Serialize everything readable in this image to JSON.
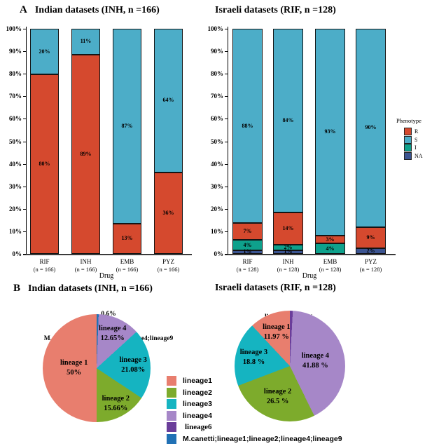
{
  "panel_a": {
    "letter": "A",
    "left_title": "Indian datasets  (INH, n =166)",
    "right_title": "Israeli datasets (RIF, n =128)"
  },
  "panel_b": {
    "letter": "B",
    "left_title": "Indian datasets  (INH, n =166)",
    "right_title": "Israeli datasets (RIF, n =128)"
  },
  "axis": {
    "ticks": [
      "0%",
      "10%",
      "20%",
      "30%",
      "40%",
      "50%",
      "60%",
      "70%",
      "80%",
      "90%",
      "100%"
    ],
    "xlabel": "Drug"
  },
  "phenotype_legend": {
    "title": "Phenotype",
    "items": [
      {
        "label": "R",
        "color": "#d5492e"
      },
      {
        "label": "S",
        "color": "#4cadc8"
      },
      {
        "label": "I",
        "color": "#0ea18c"
      },
      {
        "label": "NA",
        "color": "#3b5491"
      }
    ]
  },
  "lineage_legend": {
    "items": [
      {
        "label": "lineage1",
        "color": "#e87e6e",
        "serif": false
      },
      {
        "label": "lineage2",
        "color": "#7dab2c",
        "serif": false
      },
      {
        "label": "lineage3",
        "color": "#15b4c1",
        "serif": false
      },
      {
        "label": "lineage4",
        "color": "#a687c8",
        "serif": false
      },
      {
        "label": "lineage6",
        "color": "#6a3d9a",
        "serif": true
      },
      {
        "label": "M.canetti;lineage1;lineage2;lineage4;lineage9",
        "color": "#2171b5",
        "serif": false
      }
    ]
  },
  "chart_data": [
    {
      "type": "bar",
      "title": "Indian datasets (INH, n =166)",
      "xlabel": "Drug",
      "ylim": [
        0,
        100
      ],
      "grid": false,
      "categories": [
        "RIF",
        "INH",
        "EMB",
        "PYZ"
      ],
      "sub_labels": [
        "(n = 166)",
        "(n = 166)",
        "(n = 166)",
        "(n = 166)"
      ],
      "series": [
        {
          "name": "NA",
          "color": "#3b5491",
          "values": [
            0,
            0,
            0,
            0
          ]
        },
        {
          "name": "I",
          "color": "#0ea18c",
          "values": [
            0,
            0,
            0,
            0
          ]
        },
        {
          "name": "R",
          "color": "#d5492e",
          "values": [
            80,
            89,
            13,
            36
          ]
        },
        {
          "name": "S",
          "color": "#4cadc8",
          "values": [
            20,
            11,
            87,
            64
          ]
        }
      ]
    },
    {
      "type": "bar",
      "title": "Israeli datasets (RIF, n =128)",
      "xlabel": "Drug",
      "ylim": [
        0,
        100
      ],
      "grid": false,
      "categories": [
        "RIF",
        "INH",
        "EMB",
        "PYZ"
      ],
      "sub_labels": [
        "(n = 128)",
        "(n = 128)",
        "(n = 128)",
        "(n = 128)"
      ],
      "series": [
        {
          "name": "NA",
          "color": "#3b5491",
          "values": [
            1,
            1,
            0,
            2
          ]
        },
        {
          "name": "I",
          "color": "#0ea18c",
          "values": [
            4,
            2,
            4,
            0
          ]
        },
        {
          "name": "R",
          "color": "#d5492e",
          "values": [
            7,
            14,
            3,
            9
          ]
        },
        {
          "name": "S",
          "color": "#4cadc8",
          "values": [
            88,
            84,
            93,
            90
          ]
        }
      ]
    },
    {
      "type": "pie",
      "title": "Indian datasets (INH, n =166)",
      "slices": [
        {
          "name": "M.canetti;lineage1;lineage2;lineage4;lineage9",
          "value": 0.6,
          "color": "#2171b5",
          "label": "",
          "label_r": 0
        },
        {
          "name": "lineage 4",
          "value": 12.65,
          "color": "#a687c8",
          "label": "12.65%",
          "label_r": 0.7
        },
        {
          "name": "lineage 3",
          "value": 21.08,
          "color": "#15b4c1",
          "label": "21.08%",
          "label_r": 0.68
        },
        {
          "name": "lineage 2",
          "value": 15.66,
          "color": "#7dab2c",
          "label": "15.66%",
          "label_r": 0.75
        },
        {
          "name": "lineage 1",
          "value": 50,
          "color": "#e87e6e",
          "label": "50%",
          "label_r": 0.42
        }
      ],
      "annotation_lines": [
        "0.6%",
        "M.canetti;lineage1;lineage2;lineage4;lineage9"
      ]
    },
    {
      "type": "pie",
      "title": "Israeli datasets (RIF, n =128)",
      "slices": [
        {
          "name": "lineage6",
          "value": 0.85,
          "color": "#6a3d9a",
          "label": "",
          "label_r": 0
        },
        {
          "name": "lineage 4",
          "value": 41.88,
          "color": "#a687c8",
          "label": "41.88 %",
          "label_r": 0.47
        },
        {
          "name": "lineage 2",
          "value": 26.5,
          "color": "#7dab2c",
          "label": "26.5 %",
          "label_r": 0.6
        },
        {
          "name": "lineage 3",
          "value": 18.8,
          "color": "#15b4c1",
          "label": "18.8 %",
          "label_r": 0.67
        },
        {
          "name": "lineage 1",
          "value": 11.97,
          "color": "#e87e6e",
          "label": "11.97 %",
          "label_r": 0.66
        }
      ],
      "annotation_lines": [
        "lineage6  0.85 %"
      ]
    }
  ]
}
